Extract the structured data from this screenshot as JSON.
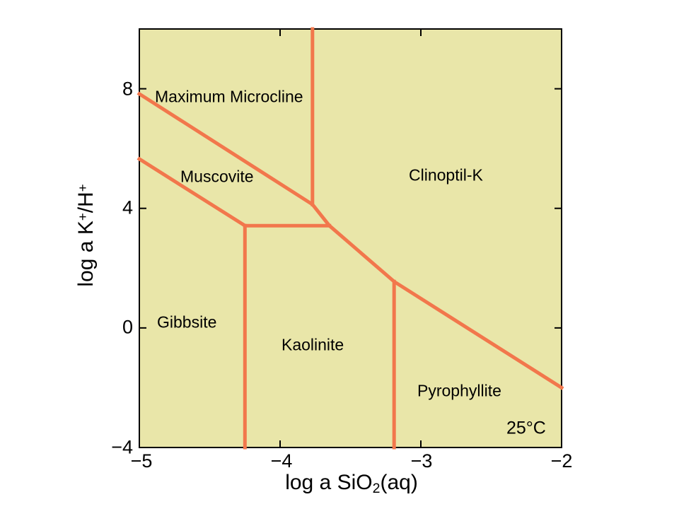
{
  "colors": {
    "page_background": "#FFFFFF",
    "field_fill": "#E9E6A9",
    "boundary_line": "#F2774C",
    "axis_frame": "#000000",
    "text": "#000000"
  },
  "axis": {
    "x_label_main": "log a SiO",
    "x_label_sub": "2",
    "x_label_suffix": "(aq)",
    "y_label_p1": "log a K",
    "y_label_sup1": "+",
    "y_label_p2": "/H",
    "y_label_sup2": "+"
  },
  "plot": {
    "x_tick_labels": [
      "−5",
      "−4",
      "−3",
      "−2"
    ],
    "y_tick_labels": [
      "−4",
      "0",
      "4",
      "8"
    ],
    "annotation": "25°C",
    "regions": [
      {
        "label": "Maximum Microcline"
      },
      {
        "label": "Muscovite"
      },
      {
        "label": "Clinoptil-K"
      },
      {
        "label": "Gibbsite"
      },
      {
        "label": "Kaolinite"
      },
      {
        "label": "Pyrophyllite"
      }
    ]
  },
  "chart_data": {
    "type": "line",
    "title": "",
    "xlabel": "log a SiO2(aq)",
    "ylabel": "log a K+/H+",
    "xlim": [
      -5,
      -2
    ],
    "ylim": [
      -4,
      10
    ],
    "x_ticks": [
      -5,
      -4,
      -3,
      -2
    ],
    "y_ticks": [
      -4,
      0,
      4,
      8
    ],
    "grid": false,
    "legend": "none",
    "annotation": "25°C",
    "stability_fields": [
      "Maximum Microcline",
      "Muscovite",
      "Clinoptil-K",
      "Gibbsite",
      "Kaolinite",
      "Pyrophyllite"
    ],
    "boundaries": [
      {
        "name": "microcline-muscovite-clinoptil-pyrophyllite-boundary",
        "points": [
          [
            -5,
            7.83
          ],
          [
            -3.77,
            4.13
          ],
          [
            -3.65,
            3.42
          ],
          [
            -3.19,
            1.55
          ],
          [
            -2,
            -2
          ]
        ]
      },
      {
        "name": "microcline-clinoptil-vertical-boundary",
        "points": [
          [
            -3.77,
            10
          ],
          [
            -3.77,
            4.13
          ]
        ]
      },
      {
        "name": "muscovite-gibbsite-boundary",
        "points": [
          [
            -5,
            5.65
          ],
          [
            -4.25,
            3.42
          ]
        ]
      },
      {
        "name": "muscovite-kaolinite-boundary",
        "points": [
          [
            -4.25,
            3.42
          ],
          [
            -3.65,
            3.42
          ]
        ]
      },
      {
        "name": "gibbsite-kaolinite-boundary",
        "points": [
          [
            -4.25,
            3.42
          ],
          [
            -4.25,
            -4
          ]
        ]
      },
      {
        "name": "kaolinite-pyrophyllite-boundary",
        "points": [
          [
            -3.19,
            1.55
          ],
          [
            -3.19,
            -4
          ]
        ]
      }
    ]
  }
}
